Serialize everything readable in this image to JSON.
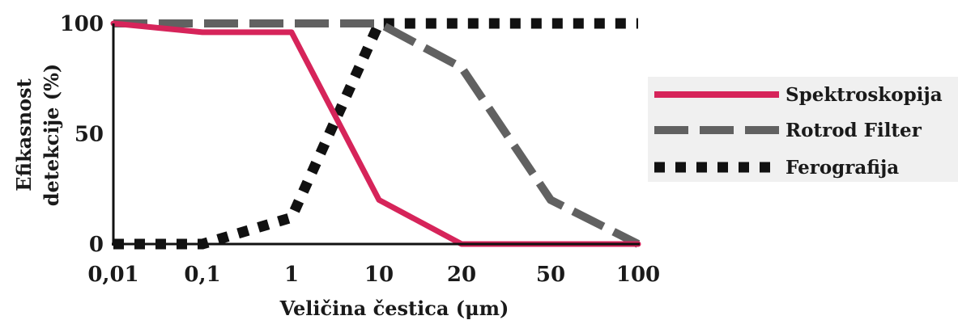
{
  "chart_data": {
    "type": "line",
    "categories": [
      "0,01",
      "0,1",
      "1",
      "10",
      "20",
      "50",
      "100"
    ],
    "series": [
      {
        "name": "Spektroskopija",
        "color": "#d6245a",
        "style": "solid",
        "points": [
          {
            "x": "0,01",
            "y": 100
          },
          {
            "x": "0,1",
            "y": 96
          },
          {
            "x": "1",
            "y": 96
          },
          {
            "x": "10",
            "y": 20
          },
          {
            "x": "20",
            "y": 0
          },
          {
            "x": "50",
            "y": 0
          },
          {
            "x": "100",
            "y": 0
          }
        ]
      },
      {
        "name": "Rotrod Filter",
        "color": "#616161",
        "style": "dashed",
        "points": [
          {
            "x": "0,01",
            "y": 100
          },
          {
            "x": "1",
            "y": 100
          },
          {
            "x": "10",
            "y": 100
          },
          {
            "x": "20",
            "y": 80
          },
          {
            "x": "50",
            "y": 20
          },
          {
            "x": "100",
            "y": 0
          }
        ]
      },
      {
        "name": "Ferografija",
        "color": "#111111",
        "style": "dotted",
        "points": [
          {
            "x": "0,01",
            "y": 0
          },
          {
            "x": "0,1",
            "y": 0
          },
          {
            "x": "1",
            "y": 12
          },
          {
            "x": "10",
            "y": 100
          },
          {
            "x": "20",
            "y": 100
          },
          {
            "x": "50",
            "y": 100
          },
          {
            "x": "100",
            "y": 100
          }
        ]
      }
    ],
    "y_ticks": [
      "0",
      "50",
      "100"
    ],
    "ylim": [
      0,
      100
    ],
    "xlabel": "Veličina čestica (μm)",
    "ylabel_lines": [
      "Efikasnost",
      "detekcije  (%)"
    ],
    "legend_position": "right",
    "grid": false
  }
}
